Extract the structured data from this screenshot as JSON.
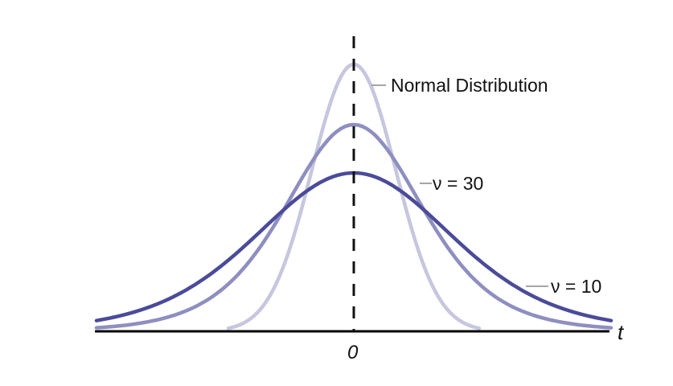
{
  "chart_data": {
    "type": "line",
    "title": "",
    "xlabel": "t",
    "ylabel": "",
    "x_ticks": [
      "0"
    ],
    "grid": false,
    "legend": "inline annotations",
    "center_line": {
      "x": 0,
      "style": "dashed"
    },
    "series": [
      {
        "name": "Normal Distribution",
        "label": "Normal Distribution",
        "color": "#c6c6de",
        "peak_rel": 1.0,
        "spread": 0.82
      },
      {
        "name": "ν = 30",
        "label": "ν = 30",
        "color": "#8e8ec0",
        "peak_rel": 0.77,
        "spread": 1.2
      },
      {
        "name": "ν = 10",
        "label": "ν = 10",
        "color": "#4b4b9a",
        "peak_rel": 0.59,
        "spread": 1.55
      }
    ]
  },
  "labels": {
    "normal": "Normal Distribution",
    "nu30": "ν = 30",
    "nu10": "ν = 10",
    "axis_t": "t",
    "zero": "0"
  }
}
